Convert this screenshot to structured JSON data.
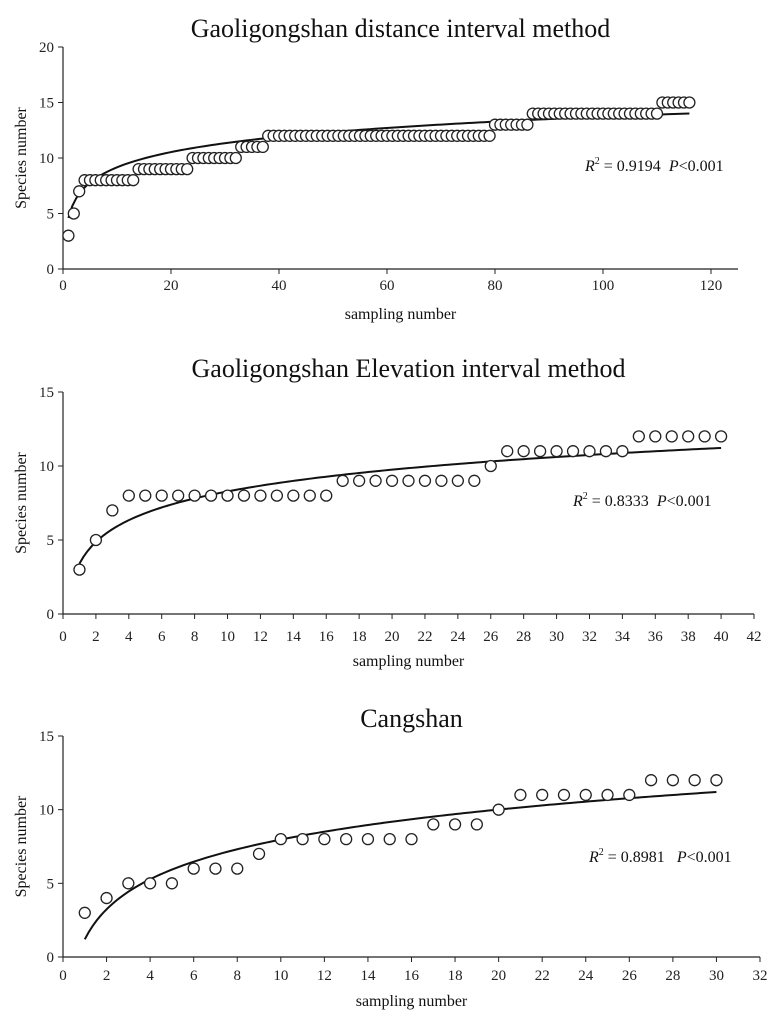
{
  "chart_data": [
    {
      "type": "scatter",
      "title": "Gaoligongshan distance interval method",
      "xlabel": "sampling number",
      "ylabel": "Species number",
      "xlim": [
        0,
        125
      ],
      "ylim": [
        0,
        20
      ],
      "xticks": [
        0,
        20,
        40,
        60,
        80,
        100,
        120
      ],
      "yticks": [
        0,
        5,
        10,
        15,
        20
      ],
      "grid": false,
      "legend": "none",
      "x": [
        1,
        2,
        3,
        4,
        5,
        6,
        7,
        8,
        9,
        10,
        11,
        12,
        13,
        14,
        15,
        16,
        17,
        18,
        19,
        20,
        21,
        22,
        23,
        24,
        25,
        26,
        27,
        28,
        29,
        30,
        31,
        32,
        33,
        34,
        35,
        36,
        37,
        38,
        39,
        40,
        41,
        42,
        43,
        44,
        45,
        46,
        47,
        48,
        49,
        50,
        51,
        52,
        53,
        54,
        55,
        56,
        57,
        58,
        59,
        60,
        61,
        62,
        63,
        64,
        65,
        66,
        67,
        68,
        69,
        70,
        71,
        72,
        73,
        74,
        75,
        76,
        77,
        78,
        79,
        80,
        81,
        82,
        83,
        84,
        85,
        86,
        87,
        88,
        89,
        90,
        91,
        92,
        93,
        94,
        95,
        96,
        97,
        98,
        99,
        100,
        101,
        102,
        103,
        104,
        105,
        106,
        107,
        108,
        109,
        110,
        111,
        112,
        113,
        114,
        115,
        116
      ],
      "y": [
        3,
        5,
        7,
        8,
        8,
        8,
        8,
        8,
        8,
        8,
        8,
        8,
        8,
        9,
        9,
        9,
        9,
        9,
        9,
        9,
        9,
        9,
        9,
        10,
        10,
        10,
        10,
        10,
        10,
        10,
        10,
        10,
        11,
        11,
        11,
        11,
        11,
        12,
        12,
        12,
        12,
        12,
        12,
        12,
        12,
        12,
        12,
        12,
        12,
        12,
        12,
        12,
        12,
        12,
        12,
        12,
        12,
        12,
        12,
        12,
        12,
        12,
        12,
        12,
        12,
        12,
        12,
        12,
        12,
        12,
        12,
        12,
        12,
        12,
        12,
        12,
        12,
        12,
        12,
        13,
        13,
        13,
        13,
        13,
        13,
        13,
        14,
        14,
        14,
        14,
        14,
        14,
        14,
        14,
        14,
        14,
        14,
        14,
        14,
        14,
        14,
        14,
        14,
        14,
        14,
        14,
        14,
        14,
        14,
        14,
        15,
        15,
        15,
        15,
        15,
        15
      ],
      "fit": {
        "model": "logarithmic",
        "a": 4.6,
        "b": 1.98,
        "x_range": [
          1,
          116
        ]
      },
      "annotation": {
        "r2_label": "R",
        "r2_sup": "2",
        "r2_value": " = 0.9194",
        "p_label": "P",
        "p_value": "<0.001"
      }
    },
    {
      "type": "scatter",
      "title": "Gaoligongshan Elevation interval method",
      "xlabel": "sampling number",
      "ylabel": "Species number",
      "xlim": [
        0,
        42
      ],
      "ylim": [
        0,
        15
      ],
      "xticks": [
        0,
        2,
        4,
        6,
        8,
        10,
        12,
        14,
        16,
        18,
        20,
        22,
        24,
        26,
        28,
        30,
        32,
        34,
        36,
        38,
        40,
        42
      ],
      "yticks": [
        0,
        5,
        10,
        15
      ],
      "grid": false,
      "legend": "none",
      "x": [
        1,
        2,
        3,
        4,
        5,
        6,
        7,
        8,
        9,
        10,
        11,
        12,
        13,
        14,
        15,
        16,
        17,
        18,
        19,
        20,
        21,
        22,
        23,
        24,
        25,
        26,
        27,
        28,
        29,
        30,
        31,
        32,
        33,
        34,
        35,
        36,
        37,
        38,
        39,
        40
      ],
      "y": [
        3,
        5,
        7,
        8,
        8,
        8,
        8,
        8,
        8,
        8,
        8,
        8,
        8,
        8,
        8,
        8,
        9,
        9,
        9,
        9,
        9,
        9,
        9,
        9,
        9,
        10,
        11,
        11,
        11,
        11,
        11,
        11,
        11,
        11,
        12,
        12,
        12,
        12,
        12,
        12
      ],
      "fit": {
        "model": "logarithmic",
        "a": 3.4,
        "b": 2.12,
        "x_range": [
          1,
          40
        ]
      },
      "annotation": {
        "r2_label": "R",
        "r2_sup": "2",
        "r2_value": " = 0.8333",
        "p_label": "P",
        "p_value": "<0.001"
      }
    },
    {
      "type": "scatter",
      "title": "Cangshan",
      "xlabel": "sampling number",
      "ylabel": "Species number",
      "xlim": [
        0,
        32
      ],
      "ylim": [
        0,
        15
      ],
      "xticks": [
        0,
        2,
        4,
        6,
        8,
        10,
        12,
        14,
        16,
        18,
        20,
        22,
        24,
        26,
        28,
        30,
        32
      ],
      "yticks": [
        0,
        5,
        10,
        15
      ],
      "grid": false,
      "legend": "none",
      "x": [
        1,
        2,
        3,
        4,
        5,
        6,
        7,
        8,
        9,
        10,
        11,
        12,
        13,
        14,
        15,
        16,
        17,
        18,
        19,
        20,
        21,
        22,
        23,
        24,
        25,
        26,
        27,
        28,
        29,
        30
      ],
      "y": [
        3,
        4,
        5,
        5,
        5,
        6,
        6,
        6,
        7,
        8,
        8,
        8,
        8,
        8,
        8,
        8,
        9,
        9,
        9,
        10,
        11,
        11,
        11,
        11,
        11,
        11,
        12,
        12,
        12,
        12
      ],
      "fit": {
        "model": "logarithmic",
        "a": 1.2,
        "b": 2.94,
        "x_range": [
          1,
          30
        ]
      },
      "annotation": {
        "r2_label": "R",
        "r2_sup": "2",
        "r2_value": " = 0.8981 ",
        "p_label": "P",
        "p_value": "<0.001"
      }
    }
  ]
}
